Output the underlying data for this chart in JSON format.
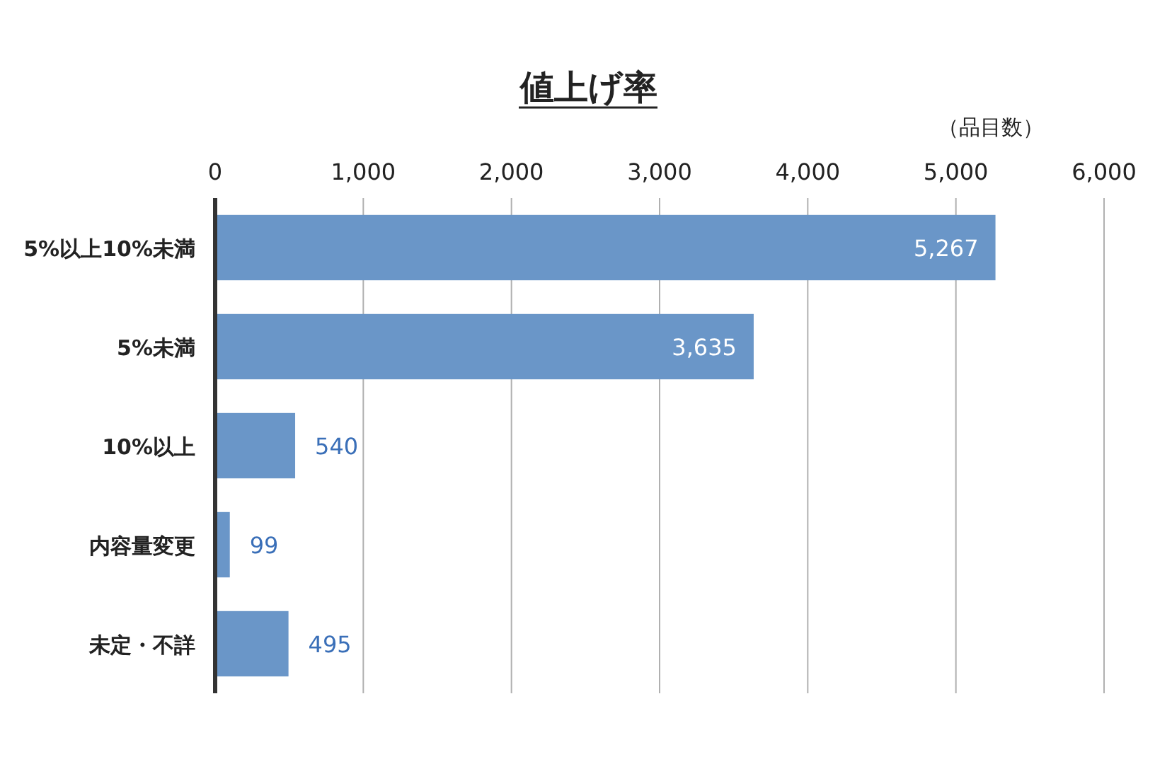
{
  "chart_data": {
    "type": "bar",
    "orientation": "horizontal",
    "title": "値上げ率",
    "xlabel": "（品目数）",
    "categories": [
      "5%以上10%未満",
      "5%未満",
      "10%以上",
      "内容量変更",
      "未定・不詳"
    ],
    "values": [
      5267,
      3635,
      540,
      99,
      495
    ],
    "value_labels": [
      "5,267",
      "3,635",
      "540",
      "99",
      "495"
    ],
    "color": "#6a96c8",
    "xlim": [
      0,
      6000
    ],
    "xticks": [
      0,
      {
        "value": 1000,
        "label": "1,000"
      },
      {
        "value": 2000,
        "label": "2,000"
      },
      {
        "value": 3000,
        "label": "3,000"
      },
      {
        "value": 4000,
        "label": "4,000"
      },
      {
        "value": 5000,
        "label": "5,000"
      },
      {
        "value": 6000,
        "label": "6,000"
      }
    ],
    "grid": "x"
  }
}
